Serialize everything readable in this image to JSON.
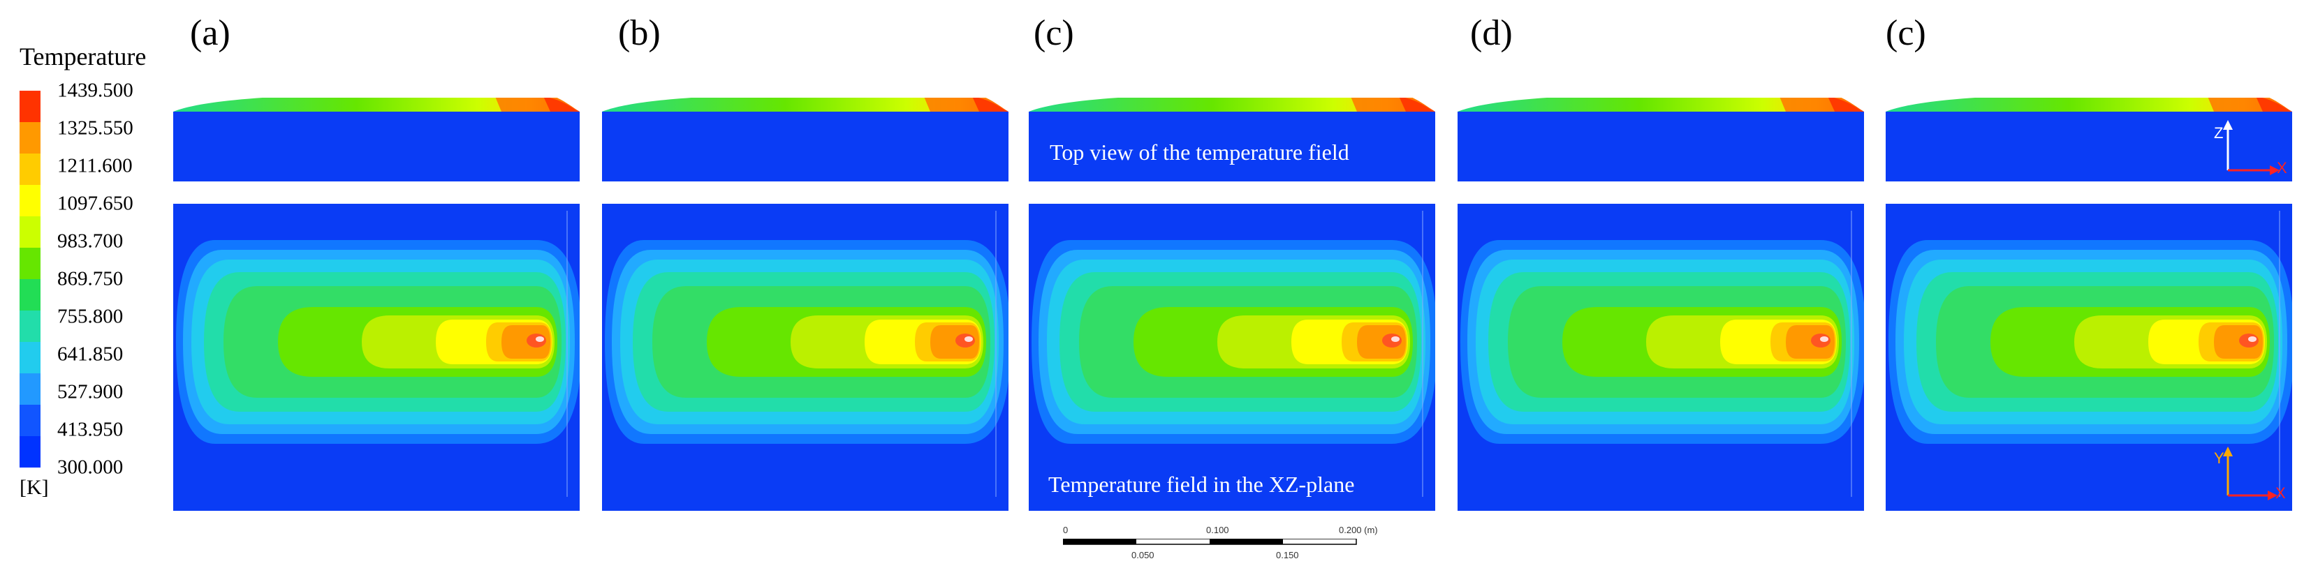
{
  "colorbar": {
    "title": "Temperature",
    "unit": "[K]",
    "labels": [
      "1439.500",
      "1325.550",
      "1211.600",
      "1097.650",
      "983.700",
      "869.750",
      "755.800",
      "641.850",
      "527.900",
      "413.950",
      "300.000"
    ],
    "colors": [
      "#ff3300",
      "#ff9900",
      "#ffcc00",
      "#ffff00",
      "#ccff00",
      "#66e600",
      "#22dd55",
      "#22ddaa",
      "#22ccee",
      "#2299ff",
      "#1155ff",
      "#0033ff"
    ]
  },
  "panels": [
    {
      "letter": "(a)"
    },
    {
      "letter": "(b)"
    },
    {
      "letter": "(c)"
    },
    {
      "letter": "(d)"
    },
    {
      "letter": "(c)"
    }
  ],
  "annotations": {
    "top_view": "Top view of the temperature field",
    "xz_plane": "Temperature field in the XZ-plane"
  },
  "axes_top": {
    "vertical": "Z",
    "horizontal": "X"
  },
  "axes_bottom": {
    "vertical": "Y",
    "horizontal": "X"
  },
  "scalebar": {
    "ticks_top": [
      "0",
      "0.100",
      "0.200 (m)"
    ],
    "ticks_bottom": [
      "0.050",
      "0.150"
    ]
  }
}
